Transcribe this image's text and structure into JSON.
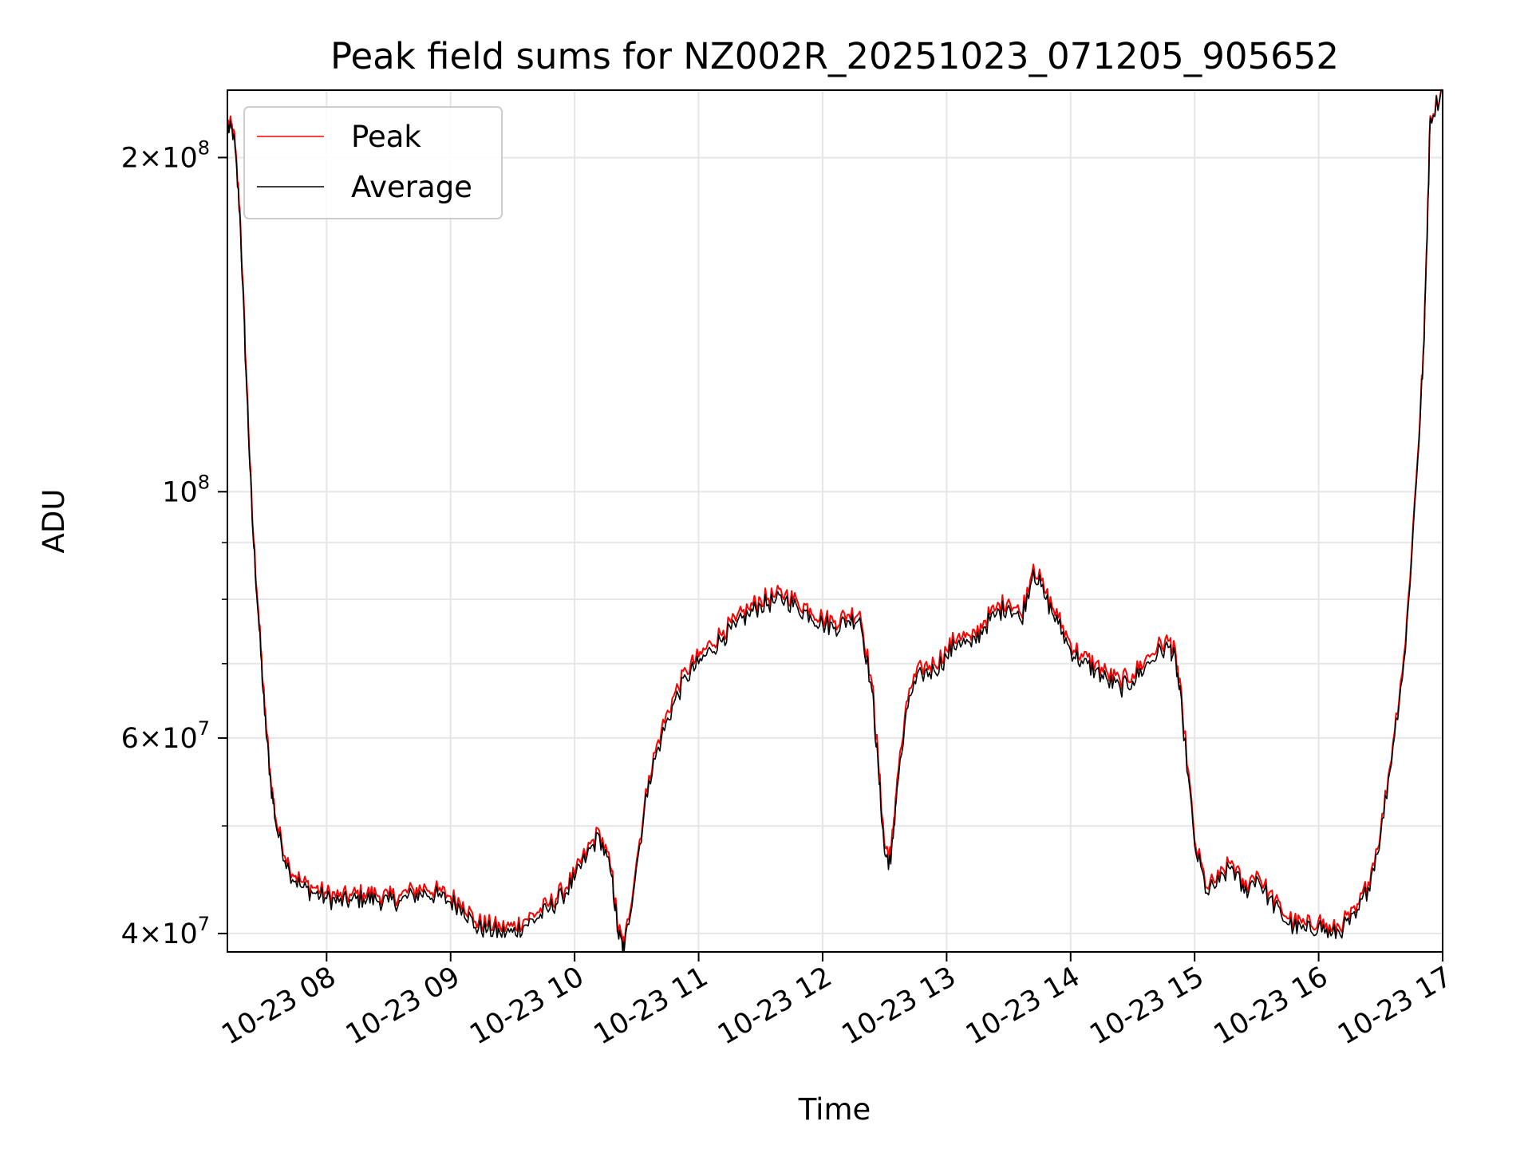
{
  "chart_data": {
    "type": "line",
    "title": "Peak field sums for NZ002R_20251023_071205_905652",
    "xlabel": "Time",
    "ylabel": "ADU",
    "yscale": "log",
    "ylim": [
      38500000,
      230000000
    ],
    "xlim": [
      7.2,
      17.0
    ],
    "grid": true,
    "legend_position": "upper-left",
    "x_ticks": [
      {
        "value": 8,
        "label": "10-23 08"
      },
      {
        "value": 9,
        "label": "10-23 09"
      },
      {
        "value": 10,
        "label": "10-23 10"
      },
      {
        "value": 11,
        "label": "10-23 11"
      },
      {
        "value": 12,
        "label": "10-23 12"
      },
      {
        "value": 13,
        "label": "10-23 13"
      },
      {
        "value": 14,
        "label": "10-23 14"
      },
      {
        "value": 15,
        "label": "10-23 15"
      },
      {
        "value": 16,
        "label": "10-23 16"
      },
      {
        "value": 17,
        "label": "10-23 17"
      }
    ],
    "y_major_ticks": [
      {
        "value": 40000000,
        "mantissa": "4",
        "exponent": "7"
      },
      {
        "value": 60000000,
        "mantissa": "6",
        "exponent": "7"
      },
      {
        "value": 100000000,
        "mantissa": "",
        "exponent": "8"
      },
      {
        "value": 200000000,
        "mantissa": "2",
        "exponent": "8"
      }
    ],
    "y_minor_ticks": [
      50000000,
      70000000,
      80000000,
      90000000
    ],
    "x": [
      7.2,
      7.25,
      7.3,
      7.35,
      7.4,
      7.45,
      7.5,
      7.55,
      7.6,
      7.7,
      7.8,
      7.9,
      8.0,
      8.1,
      8.2,
      8.3,
      8.4,
      8.5,
      8.6,
      8.7,
      8.8,
      8.9,
      9.0,
      9.1,
      9.2,
      9.3,
      9.4,
      9.5,
      9.6,
      9.7,
      9.8,
      9.9,
      10.0,
      10.1,
      10.2,
      10.3,
      10.35,
      10.4,
      10.5,
      10.6,
      10.7,
      10.8,
      10.9,
      11.0,
      11.1,
      11.2,
      11.3,
      11.4,
      11.5,
      11.6,
      11.7,
      11.8,
      11.9,
      12.0,
      12.1,
      12.2,
      12.3,
      12.4,
      12.45,
      12.5,
      12.55,
      12.6,
      12.7,
      12.8,
      12.9,
      13.0,
      13.1,
      13.2,
      13.3,
      13.4,
      13.5,
      13.6,
      13.7,
      13.8,
      13.9,
      14.0,
      14.1,
      14.2,
      14.3,
      14.4,
      14.5,
      14.6,
      14.7,
      14.8,
      14.85,
      14.9,
      15.0,
      15.1,
      15.2,
      15.3,
      15.4,
      15.5,
      15.6,
      15.7,
      15.8,
      15.9,
      16.0,
      16.1,
      16.2,
      16.3,
      16.4,
      16.5,
      16.6,
      16.7,
      16.8,
      16.85,
      16.9,
      17.0
    ],
    "series": [
      {
        "name": "Peak",
        "color": "#ff0000",
        "values": [
          215000000,
          212000000,
          180000000,
          130000000,
          95000000,
          78000000,
          64000000,
          55000000,
          50000000,
          46000000,
          44500000,
          44000000,
          43500000,
          43200000,
          43300000,
          43500000,
          43400000,
          43200000,
          43300000,
          43800000,
          44000000,
          43700000,
          43200000,
          42700000,
          41000000,
          40800000,
          40500000,
          40600000,
          41200000,
          41800000,
          42600000,
          43700000,
          45200000,
          47500000,
          49500000,
          45500000,
          40500000,
          39000000,
          46500000,
          55500000,
          61000000,
          65500000,
          69000000,
          71000000,
          73000000,
          75000000,
          76500000,
          78500000,
          80000000,
          80500000,
          81000000,
          79500000,
          78500000,
          77000000,
          76500000,
          77500000,
          78000000,
          67000000,
          57000000,
          48000000,
          47000000,
          55000000,
          66500000,
          69500000,
          70000000,
          72000000,
          74500000,
          73500000,
          76500000,
          78500000,
          80000000,
          77500000,
          86000000,
          81000000,
          77000000,
          73000000,
          71000000,
          70000000,
          68500000,
          67500000,
          68500000,
          70500000,
          72500000,
          73500000,
          71000000,
          64000000,
          48500000,
          44000000,
          45000000,
          46500000,
          44000000,
          45500000,
          43500000,
          42000000,
          41000000,
          40700000,
          41200000,
          40200000,
          41000000,
          41800000,
          44500000,
          49500000,
          59500000,
          73000000,
          108000000,
          137000000,
          218000000,
          230000000
        ]
      },
      {
        "name": "Average",
        "color": "#000000",
        "values": [
          213000000,
          210000000,
          178000000,
          128000000,
          94000000,
          77000000,
          63000000,
          54500000,
          49500000,
          45500000,
          44000000,
          43500000,
          43000000,
          42700000,
          42800000,
          43000000,
          42900000,
          42700000,
          42800000,
          43300000,
          43500000,
          43200000,
          42700000,
          42200000,
          40500000,
          40300000,
          40000000,
          40100000,
          40700000,
          41300000,
          42100000,
          43200000,
          44700000,
          47000000,
          49000000,
          45000000,
          40000000,
          38600000,
          46000000,
          55000000,
          60000000,
          64500000,
          68000000,
          70000000,
          72000000,
          74000000,
          75500000,
          77500000,
          79000000,
          79500000,
          80000000,
          78500000,
          77500000,
          76000000,
          75500000,
          76500000,
          77000000,
          66000000,
          56000000,
          47200000,
          46200000,
          54000000,
          65500000,
          68500000,
          69000000,
          71000000,
          73500000,
          72500000,
          75500000,
          77500000,
          79000000,
          76500000,
          85000000,
          80000000,
          76000000,
          72000000,
          70000000,
          69000000,
          67500000,
          66500000,
          67500000,
          69500000,
          71500000,
          72500000,
          70000000,
          63000000,
          48000000,
          43500000,
          44500000,
          46000000,
          43500000,
          45000000,
          43000000,
          41500000,
          40500000,
          40200000,
          40700000,
          39800000,
          40500000,
          41300000,
          44000000,
          49000000,
          59000000,
          72000000,
          107000000,
          136000000,
          217000000,
          230000000
        ]
      }
    ]
  }
}
